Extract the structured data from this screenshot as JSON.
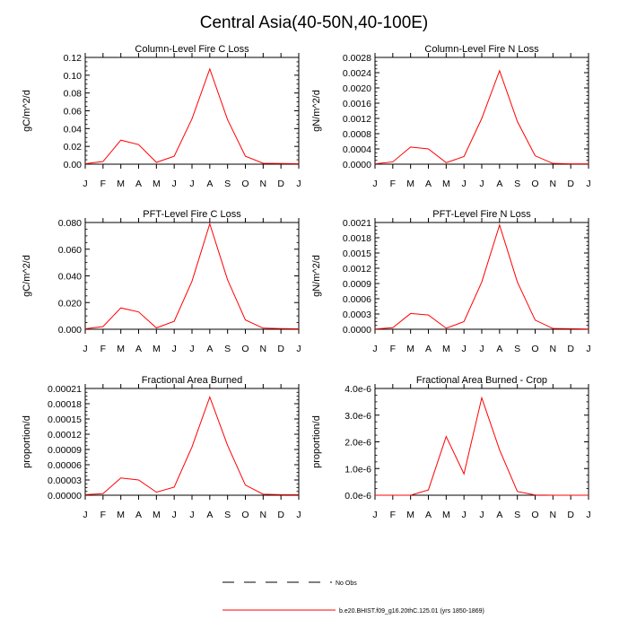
{
  "figure": {
    "title": "Central Asia(40-50N,40-100E)"
  },
  "legend": {
    "obs_label": "No Obs",
    "model_label": "b.e20.BHIST.f09_g16.20thC.125.01 (yrs 1850-1869)",
    "model_color": "#ff0000",
    "obs_color": "#000000",
    "obs_style": "dashed"
  },
  "chart_data": [
    {
      "type": "line",
      "title": "Column-Level Fire C Loss",
      "xlabel": "",
      "ylabel": "gC/m^2/d",
      "categories": [
        "J",
        "F",
        "M",
        "A",
        "M",
        "J",
        "J",
        "A",
        "S",
        "O",
        "N",
        "D",
        "J"
      ],
      "ylim": [
        0,
        0.12
      ],
      "yticks": [
        "0.00",
        "0.02",
        "0.04",
        "0.06",
        "0.08",
        "0.10",
        "0.12"
      ],
      "series": [
        {
          "values": [
            0.0005,
            0.003,
            0.027,
            0.022,
            0.002,
            0.009,
            0.051,
            0.107,
            0.05,
            0.009,
            0.001,
            0.0008,
            0.0005
          ]
        }
      ]
    },
    {
      "type": "line",
      "title": "Column-Level Fire N Loss",
      "xlabel": "",
      "ylabel": "gN/m^2/d",
      "categories": [
        "J",
        "F",
        "M",
        "A",
        "M",
        "J",
        "J",
        "A",
        "S",
        "O",
        "N",
        "D",
        "J"
      ],
      "ylim": [
        0,
        0.0028
      ],
      "yticks": [
        "0.0000",
        "0.0004",
        "0.0008",
        "0.0012",
        "0.0016",
        "0.0020",
        "0.0024",
        "0.0028"
      ],
      "series": [
        {
          "values": [
            1e-05,
            6e-05,
            0.00045,
            0.0004,
            4e-05,
            0.0002,
            0.0012,
            0.00245,
            0.00112,
            0.00022,
            2e-05,
            1e-05,
            1e-05
          ]
        }
      ]
    },
    {
      "type": "line",
      "title": "PFT-Level Fire C Loss",
      "xlabel": "",
      "ylabel": "gC/m^2/d",
      "categories": [
        "J",
        "F",
        "M",
        "A",
        "M",
        "J",
        "J",
        "A",
        "S",
        "O",
        "N",
        "D",
        "J"
      ],
      "ylim": [
        0,
        0.08
      ],
      "yticks": [
        "0.000",
        "0.020",
        "0.040",
        "0.060",
        "0.080"
      ],
      "series": [
        {
          "values": [
            0.0003,
            0.002,
            0.016,
            0.013,
            0.001,
            0.006,
            0.036,
            0.079,
            0.037,
            0.007,
            0.0008,
            0.0005,
            0.0003
          ]
        }
      ]
    },
    {
      "type": "line",
      "title": "PFT-Level Fire N Loss",
      "xlabel": "",
      "ylabel": "gN/m^2/d",
      "categories": [
        "J",
        "F",
        "M",
        "A",
        "M",
        "J",
        "J",
        "A",
        "S",
        "O",
        "N",
        "D",
        "J"
      ],
      "ylim": [
        0,
        0.0021
      ],
      "yticks": [
        "0.0000",
        "0.0003",
        "0.0006",
        "0.0009",
        "0.0012",
        "0.0015",
        "0.0018",
        "0.0021"
      ],
      "series": [
        {
          "values": [
            5e-06,
            3e-05,
            0.00031,
            0.00028,
            2e-05,
            0.00015,
            0.00093,
            0.00205,
            0.00093,
            0.00018,
            1.5e-05,
            1e-05,
            5e-06
          ]
        }
      ]
    },
    {
      "type": "line",
      "title": "Fractional Area Burned",
      "xlabel": "",
      "ylabel": "proportion/d",
      "categories": [
        "J",
        "F",
        "M",
        "A",
        "M",
        "J",
        "J",
        "A",
        "S",
        "O",
        "N",
        "D",
        "J"
      ],
      "ylim": [
        0,
        0.00021
      ],
      "yticks": [
        "0.00000",
        "0.00003",
        "0.00006",
        "0.00009",
        "0.00012",
        "0.00015",
        "0.00018",
        "0.00021"
      ],
      "series": [
        {
          "values": [
            1e-06,
            3e-06,
            3.4e-05,
            3e-05,
            6e-06,
            1.6e-05,
            9.5e-05,
            0.000193,
            9.8e-05,
            2e-05,
            2e-06,
            1e-06,
            1e-06
          ]
        }
      ]
    },
    {
      "type": "line",
      "title": "Fractional Area Burned - Crop",
      "xlabel": "",
      "ylabel": "proportion/d",
      "categories": [
        "J",
        "F",
        "M",
        "A",
        "M",
        "J",
        "J",
        "A",
        "S",
        "O",
        "N",
        "D",
        "J"
      ],
      "ylim": [
        0,
        4e-06
      ],
      "yticks": [
        "0.0e-6",
        "1.0e-6",
        "2.0e-6",
        "3.0e-6",
        "4.0e-6"
      ],
      "series": [
        {
          "values": [
            0,
            0,
            0,
            2e-07,
            2.2e-06,
            8e-07,
            3.65e-06,
            1.7e-06,
            1.4e-07,
            1e-08,
            0,
            0,
            0
          ]
        }
      ]
    }
  ]
}
